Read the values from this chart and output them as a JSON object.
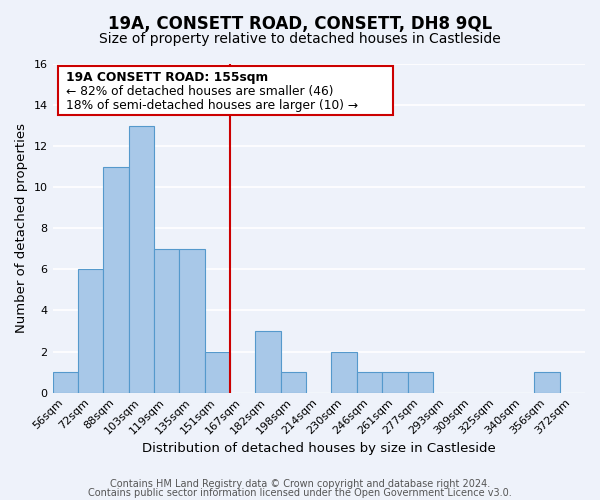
{
  "title": "19A, CONSETT ROAD, CONSETT, DH8 9QL",
  "subtitle": "Size of property relative to detached houses in Castleside",
  "xlabel": "Distribution of detached houses by size in Castleside",
  "ylabel": "Number of detached properties",
  "bin_labels": [
    "56sqm",
    "72sqm",
    "88sqm",
    "103sqm",
    "119sqm",
    "135sqm",
    "151sqm",
    "167sqm",
    "182sqm",
    "198sqm",
    "214sqm",
    "230sqm",
    "246sqm",
    "261sqm",
    "277sqm",
    "293sqm",
    "309sqm",
    "325sqm",
    "340sqm",
    "356sqm",
    "372sqm"
  ],
  "bar_values": [
    1,
    6,
    11,
    13,
    7,
    7,
    2,
    0,
    3,
    1,
    0,
    2,
    1,
    1,
    1,
    0,
    0,
    0,
    0,
    1,
    0
  ],
  "bar_color": "#a8c8e8",
  "bar_edge_color": "#5599cc",
  "ylim": [
    0,
    16
  ],
  "yticks": [
    0,
    2,
    4,
    6,
    8,
    10,
    12,
    14,
    16
  ],
  "vline_x_index": 6,
  "vline_color": "#cc0000",
  "annotation_title": "19A CONSETT ROAD: 155sqm",
  "annotation_line1": "← 82% of detached houses are smaller (46)",
  "annotation_line2": "18% of semi-detached houses are larger (10) →",
  "annotation_box_edge": "#cc0000",
  "footer1": "Contains HM Land Registry data © Crown copyright and database right 2024.",
  "footer2": "Contains public sector information licensed under the Open Government Licence v3.0.",
  "bg_color": "#eef2fa",
  "plot_bg_color": "#eef2fa",
  "grid_color": "#ffffff",
  "title_fontsize": 12,
  "subtitle_fontsize": 10,
  "label_fontsize": 9.5,
  "tick_fontsize": 8,
  "footer_fontsize": 7
}
